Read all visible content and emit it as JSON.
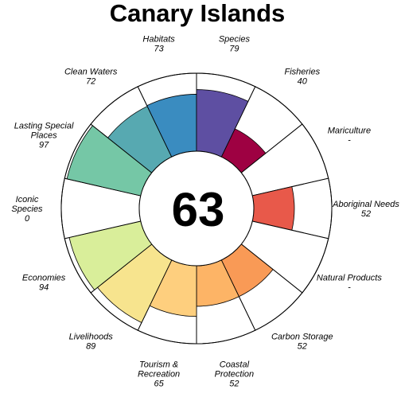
{
  "chart_data": {
    "type": "flower",
    "title": "Canary Islands",
    "center_value": "63",
    "max_value": 100,
    "petals": [
      {
        "label": "Fisheries",
        "value_text": "40",
        "value": 40,
        "color": "#9E0142"
      },
      {
        "label": "Mariculture",
        "value_text": "-",
        "value": 0,
        "color": "#D53E4F"
      },
      {
        "label": "Aboriginal Needs",
        "value_text": "52",
        "value": 52,
        "color": "#E8594A"
      },
      {
        "label": "Natural Products",
        "value_text": "-",
        "value": 0,
        "color": "#F46D43"
      },
      {
        "label": "Carbon Storage",
        "value_text": "52",
        "value": 52,
        "color": "#F99A56"
      },
      {
        "label": "Coastal Protection",
        "value_text": "52",
        "value": 52,
        "color": "#FDB466"
      },
      {
        "label": "Tourism & Recreation",
        "value_text": "65",
        "value": 65,
        "color": "#FECF7E"
      },
      {
        "label": "Livelihoods",
        "value_text": "89",
        "value": 89,
        "color": "#F7E48E"
      },
      {
        "label": "Economies",
        "value_text": "94",
        "value": 94,
        "color": "#D9EE9A"
      },
      {
        "label": "Iconic Species",
        "value_text": "0",
        "value": 0,
        "color": "#A6DBA0"
      },
      {
        "label": "Lasting Special Places",
        "value_text": "97",
        "value": 97,
        "color": "#75C7A6"
      },
      {
        "label": "Clean Waters",
        "value_text": "72",
        "value": 72,
        "color": "#57A9B1"
      },
      {
        "label": "Habitats",
        "value_text": "73",
        "value": 73,
        "color": "#3A8CC0"
      },
      {
        "label": "Species",
        "value_text": "79",
        "value": 79,
        "color": "#5E4FA2"
      }
    ]
  }
}
